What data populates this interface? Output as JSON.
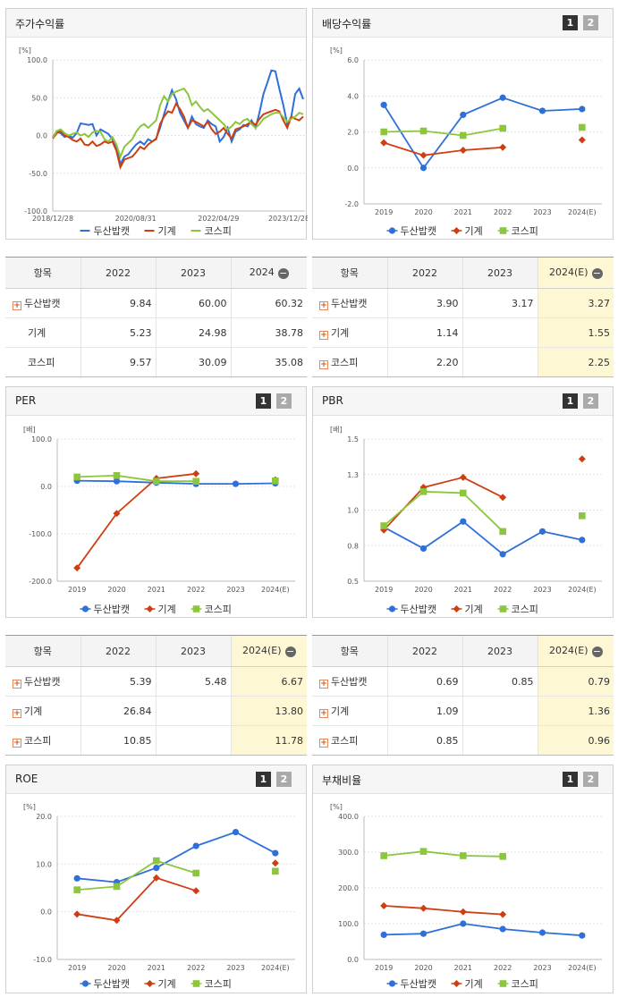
{
  "panels": {
    "stock_return": {
      "title": "주가수익률"
    },
    "dividend": {
      "title": "배당수익률",
      "page1": "1",
      "page2": "2"
    },
    "per": {
      "title": "PER",
      "page1": "1",
      "page2": "2"
    },
    "pbr": {
      "title": "PBR",
      "page1": "1",
      "page2": "2"
    },
    "roe": {
      "title": "ROE",
      "page1": "1",
      "page2": "2"
    },
    "debt": {
      "title": "부채비율",
      "page1": "1",
      "page2": "2"
    }
  },
  "colors": {
    "두산밥캣": "#2e6fd8",
    "기계": "#cf3e12",
    "코스피": "#8cc63e"
  },
  "chart_data": [
    {
      "id": "stock_return",
      "type": "line",
      "unit": "[%]",
      "ylim": [
        -100,
        100
      ],
      "yticks": [
        "100.0",
        "50.0",
        "0.0",
        "-50.0",
        "-100.0"
      ],
      "xticks": [
        "2018/12/28",
        "2020/08/31",
        "2022/04/29",
        "2023/12/28"
      ],
      "legend": [
        "두산밥캣",
        "기계",
        "코스피"
      ],
      "series": [
        {
          "name": "두산밥캣",
          "values": [
            -2,
            5,
            3,
            -2,
            0,
            -3,
            3,
            16,
            15,
            14,
            15,
            0,
            8,
            5,
            2,
            -5,
            -15,
            -38,
            -28,
            -25,
            -18,
            -12,
            -8,
            -12,
            -5,
            -8,
            -4,
            10,
            28,
            45,
            60,
            48,
            30,
            20,
            10,
            25,
            15,
            12,
            10,
            20,
            15,
            12,
            -8,
            -2,
            10,
            -8,
            5,
            8,
            14,
            12,
            20,
            10,
            30,
            55,
            70,
            86,
            85,
            62,
            40,
            15,
            25,
            55,
            62,
            48
          ]
        },
        {
          "name": "기계",
          "values": [
            -4,
            3,
            6,
            0,
            -2,
            -6,
            -8,
            -4,
            -12,
            -13,
            -8,
            -14,
            -12,
            -8,
            -10,
            -8,
            -20,
            -42,
            -32,
            -30,
            -28,
            -22,
            -15,
            -18,
            -12,
            -8,
            -5,
            15,
            25,
            32,
            30,
            42,
            35,
            25,
            10,
            20,
            18,
            15,
            12,
            18,
            8,
            2,
            5,
            10,
            2,
            -4,
            8,
            10,
            12,
            15,
            18,
            14,
            22,
            28,
            30,
            32,
            34,
            32,
            20,
            10,
            25,
            22,
            20,
            25
          ]
        },
        {
          "name": "코스피",
          "values": [
            -3,
            6,
            8,
            3,
            0,
            2,
            4,
            0,
            2,
            -2,
            4,
            6,
            5,
            -5,
            -8,
            -2,
            -12,
            -28,
            -15,
            -10,
            -5,
            5,
            12,
            15,
            10,
            15,
            20,
            40,
            52,
            45,
            55,
            58,
            60,
            62,
            55,
            40,
            45,
            38,
            32,
            35,
            30,
            25,
            20,
            15,
            8,
            12,
            18,
            15,
            20,
            22,
            15,
            10,
            15,
            22,
            25,
            28,
            30,
            30,
            24,
            18,
            22,
            25,
            30,
            28
          ]
        }
      ]
    },
    {
      "id": "dividend",
      "type": "line",
      "unit": "[%]",
      "ylim": [
        -2,
        6
      ],
      "yticks": [
        "6.0",
        "4.0",
        "2.0",
        "0.0",
        "-2.0"
      ],
      "categories": [
        "2019",
        "2020",
        "2021",
        "2022",
        "2023",
        "2024(E)"
      ],
      "legend": [
        "두산밥캣",
        "기계",
        "코스피"
      ],
      "series": [
        {
          "name": "두산밥캣",
          "values": [
            3.5,
            0.0,
            2.95,
            3.9,
            3.17,
            3.27
          ]
        },
        {
          "name": "기계",
          "values": [
            1.4,
            0.7,
            0.98,
            1.14,
            null,
            1.55
          ]
        },
        {
          "name": "코스피",
          "values": [
            2.0,
            2.05,
            1.8,
            2.2,
            null,
            2.25
          ]
        }
      ]
    },
    {
      "id": "per",
      "type": "line",
      "unit": "[배]",
      "ylim": [
        -200,
        100
      ],
      "yticks": [
        "100.0",
        "0.0",
        "-100.0",
        "-200.0"
      ],
      "categories": [
        "2019",
        "2020",
        "2021",
        "2022",
        "2023",
        "2024(E)"
      ],
      "legend": [
        "두산밥캣",
        "기계",
        "코스피"
      ],
      "series": [
        {
          "name": "두산밥캣",
          "values": [
            12,
            11,
            8,
            5.39,
            5.48,
            6.67
          ]
        },
        {
          "name": "기계",
          "values": [
            -172,
            -57,
            17,
            26.84,
            null,
            13.8
          ]
        },
        {
          "name": "코스피",
          "values": [
            20,
            23,
            11,
            10.85,
            null,
            11.78
          ]
        }
      ]
    },
    {
      "id": "pbr",
      "type": "line",
      "unit": "[배]",
      "ylim": [
        0.5,
        1.5
      ],
      "yticks": [
        "1.5",
        "1.3",
        "1.0",
        "0.8",
        "0.5"
      ],
      "categories": [
        "2019",
        "2020",
        "2021",
        "2022",
        "2023",
        "2024(E)"
      ],
      "legend": [
        "두산밥캣",
        "기계",
        "코스피"
      ],
      "series": [
        {
          "name": "두산밥캣",
          "values": [
            0.88,
            0.73,
            0.92,
            0.69,
            0.85,
            0.79
          ]
        },
        {
          "name": "기계",
          "values": [
            0.86,
            1.16,
            1.23,
            1.09,
            null,
            1.36
          ]
        },
        {
          "name": "코스피",
          "values": [
            0.89,
            1.13,
            1.12,
            0.85,
            null,
            0.96
          ]
        }
      ]
    },
    {
      "id": "roe",
      "type": "line",
      "unit": "[%]",
      "ylim": [
        -10,
        20
      ],
      "yticks": [
        "20.0",
        "10.0",
        "0.0",
        "-10.0"
      ],
      "categories": [
        "2019",
        "2020",
        "2021",
        "2022",
        "2023",
        "2024(E)"
      ],
      "legend": [
        "두산밥캣",
        "기계",
        "코스피"
      ],
      "series": [
        {
          "name": "두산밥캣",
          "values": [
            7.0,
            6.2,
            9.2,
            13.8,
            16.7,
            12.3
          ]
        },
        {
          "name": "기계",
          "values": [
            -0.5,
            -1.8,
            7.1,
            4.4,
            null,
            10.2
          ]
        },
        {
          "name": "코스피",
          "values": [
            4.6,
            5.3,
            10.7,
            8.1,
            null,
            8.5
          ]
        }
      ]
    },
    {
      "id": "debt",
      "type": "line",
      "unit": "[%]",
      "ylim": [
        0,
        400
      ],
      "yticks": [
        "400.0",
        "300.0",
        "200.0",
        "100.0",
        "0.0"
      ],
      "categories": [
        "2019",
        "2020",
        "2021",
        "2022",
        "2023",
        "2024(E)"
      ],
      "legend": [
        "두산밥캣",
        "기계",
        "코스피"
      ],
      "series": [
        {
          "name": "두산밥캣",
          "values": [
            69,
            72,
            100,
            85,
            75,
            67
          ]
        },
        {
          "name": "기계",
          "values": [
            150,
            143,
            133,
            126,
            null,
            null
          ]
        },
        {
          "name": "코스피",
          "values": [
            290,
            302,
            290,
            288,
            null,
            null
          ]
        }
      ]
    }
  ],
  "tables": {
    "stock_return": {
      "headers": [
        "항목",
        "2022",
        "2023",
        "2024"
      ],
      "rows": [
        {
          "label": "두산밥캣",
          "v2022": "9.84",
          "v2023": "60.00",
          "v2024": "60.32"
        },
        {
          "label": "기계",
          "v2022": "5.23",
          "v2023": "24.98",
          "v2024": "38.78"
        },
        {
          "label": "코스피",
          "v2022": "9.57",
          "v2023": "30.09",
          "v2024": "35.08"
        }
      ]
    },
    "dividend": {
      "headers": [
        "항목",
        "2022",
        "2023",
        "2024(E)"
      ],
      "rows": [
        {
          "label": "두산밥캣",
          "v2022": "3.90",
          "v2023": "3.17",
          "v2024": "3.27"
        },
        {
          "label": "기계",
          "v2022": "1.14",
          "v2023": "",
          "v2024": "1.55"
        },
        {
          "label": "코스피",
          "v2022": "2.20",
          "v2023": "",
          "v2024": "2.25"
        }
      ]
    },
    "per": {
      "headers": [
        "항목",
        "2022",
        "2023",
        "2024(E)"
      ],
      "rows": [
        {
          "label": "두산밥캣",
          "v2022": "5.39",
          "v2023": "5.48",
          "v2024": "6.67"
        },
        {
          "label": "기계",
          "v2022": "26.84",
          "v2023": "",
          "v2024": "13.80"
        },
        {
          "label": "코스피",
          "v2022": "10.85",
          "v2023": "",
          "v2024": "11.78"
        }
      ]
    },
    "pbr": {
      "headers": [
        "항목",
        "2022",
        "2023",
        "2024(E)"
      ],
      "rows": [
        {
          "label": "두산밥캣",
          "v2022": "0.69",
          "v2023": "0.85",
          "v2024": "0.79"
        },
        {
          "label": "기계",
          "v2022": "1.09",
          "v2023": "",
          "v2024": "1.36"
        },
        {
          "label": "코스피",
          "v2022": "0.85",
          "v2023": "",
          "v2024": "0.96"
        }
      ]
    }
  }
}
